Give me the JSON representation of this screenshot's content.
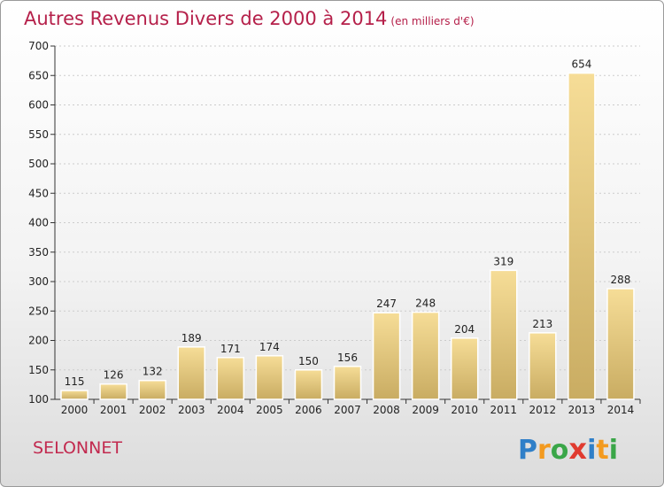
{
  "title": "Autres Revenus Divers de 2000 à 2014",
  "subtitle": "(en milliers d'€)",
  "commune": "SELONNET",
  "logo": {
    "letters": [
      "P",
      "r",
      "o",
      "x",
      "i",
      "t",
      "i"
    ],
    "colors": [
      "#2f7fc8",
      "#f39a1f",
      "#3aa648",
      "#e03b2f",
      "#2f7fc8",
      "#f39a1f",
      "#3aa648"
    ]
  },
  "colors": {
    "bar_light": "#f6dd97",
    "bar_dark": "#c9ac62",
    "title": "#b5204a",
    "grid": "#cccccc"
  },
  "chart_data": {
    "type": "bar",
    "categories": [
      "2000",
      "2001",
      "2002",
      "2003",
      "2004",
      "2005",
      "2006",
      "2007",
      "2008",
      "2009",
      "2010",
      "2011",
      "2012",
      "2013",
      "2014"
    ],
    "values": [
      115,
      126,
      132,
      189,
      171,
      174,
      150,
      156,
      247,
      248,
      204,
      319,
      213,
      654,
      288
    ],
    "title": "Autres Revenus Divers de 2000 à 2014",
    "ylim": [
      100,
      700
    ],
    "yticks": [
      100,
      150,
      200,
      250,
      300,
      350,
      400,
      450,
      500,
      550,
      600,
      650,
      700
    ],
    "grid": true
  }
}
